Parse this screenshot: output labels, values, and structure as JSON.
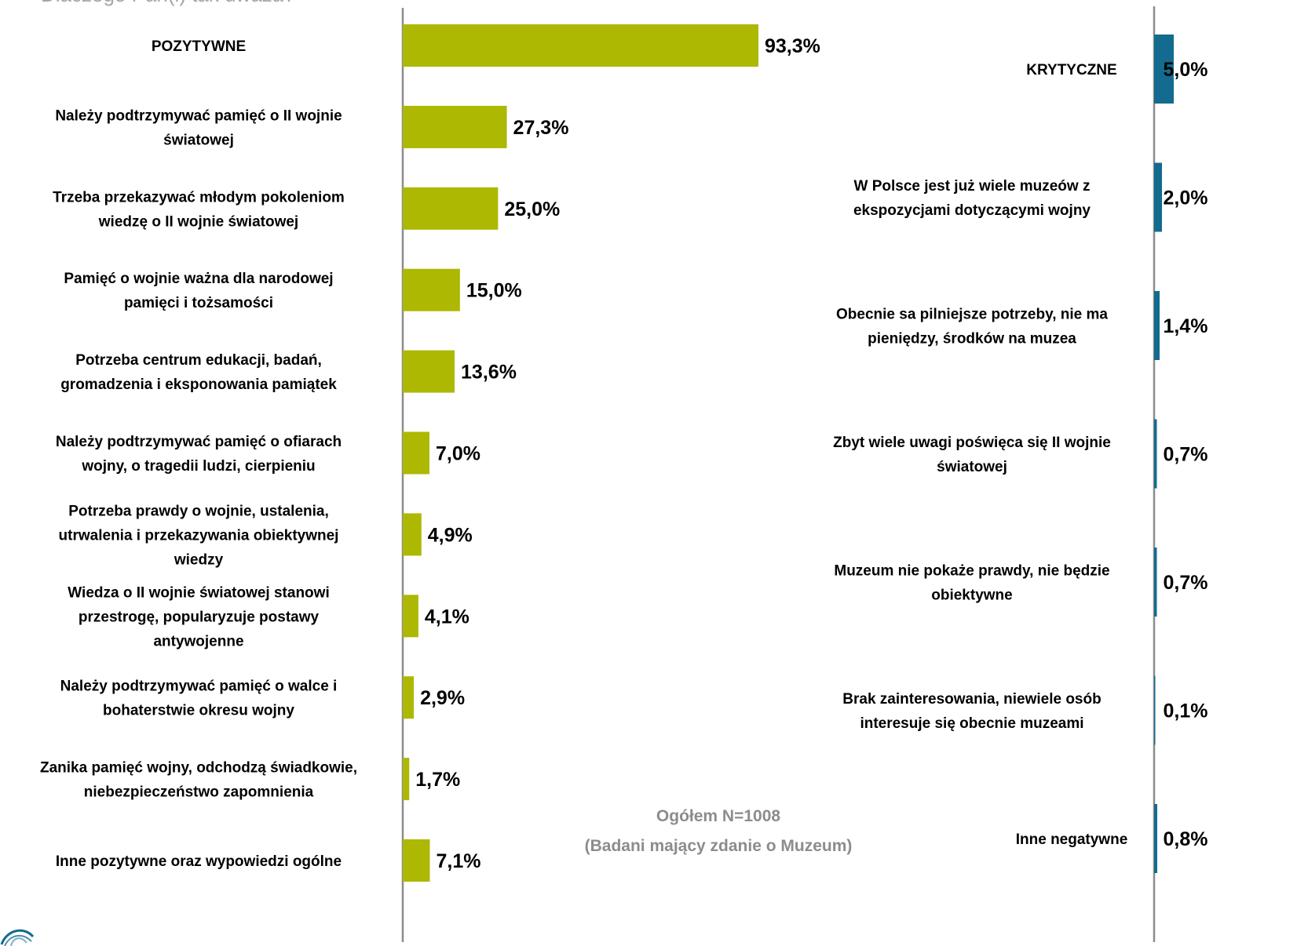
{
  "question_text": "Dlaczego Pan(i) tak uważa?",
  "note": {
    "line1": "Ogółem N=1008",
    "line2": "(Badani mający zdanie o Muzeum)"
  },
  "colors": {
    "positive": "#adb802",
    "negative": "#136b8f",
    "axis": "#8c8c8c",
    "text": "#000000",
    "note": "#8c8c8c"
  },
  "logo_icon": "globe-logo-icon",
  "chart_data": [
    {
      "type": "bar",
      "orientation": "horizontal",
      "unit": "%",
      "xlim": [
        0,
        100
      ],
      "categories": [
        "POZYTYWNE",
        "Należy podtrzymywać pamięć o II wojnie światowej",
        "Trzeba przekazywać młodym pokoleniom wiedzę o II wojnie światowej",
        "Pamięć o wojnie ważna dla narodowej pamięci i tożsamości",
        "Potrzeba centrum edukacji, badań, gromadzenia i eksponowania pamiątek",
        "Należy podtrzymywać pamięć o ofiarach wojny, o tragedii ludzi, cierpieniu",
        "Potrzeba prawdy o wojnie, ustalenia, utrwalenia i przekazywania obiektywnej wiedzy",
        "Wiedza o II wojnie światowej stanowi przestrogę, popularyzuje postawy antywojenne",
        "Należy podtrzymywać pamięć o walce i bohaterstwie okresu wojny",
        "Zanika pamięć wojny, odchodzą świadkowie, niebezpieczeństwo zapomnienia",
        "Inne pozytywne oraz wypowiedzi ogólne"
      ],
      "label_lines": [
        [
          "POZYTYWNE"
        ],
        [
          "Należy podtrzymywać pamięć o II wojnie",
          "światowej"
        ],
        [
          "Trzeba przekazywać młodym pokoleniom",
          "wiedzę o II wojnie światowej"
        ],
        [
          "Pamięć o wojnie ważna dla narodowej",
          "pamięci i tożsamości"
        ],
        [
          "Potrzeba centrum edukacji, badań,",
          "gromadzenia i eksponowania pamiątek"
        ],
        [
          "Należy podtrzymywać pamięć o ofiarach",
          "wojny, o tragedii ludzi, cierpieniu"
        ],
        [
          "Potrzeba prawdy o wojnie, ustalenia,",
          "utrwalenia i przekazywania obiektywnej",
          "wiedzy"
        ],
        [
          "Wiedza o II wojnie światowej stanowi",
          "przestrogę, popularyzuje postawy",
          "antywojenne"
        ],
        [
          "Należy podtrzymywać pamięć o walce i",
          "bohaterstwie okresu wojny"
        ],
        [
          "Zanika pamięć wojny, odchodzą świadkowie,",
          "niebezpieczeństwo zapomnienia"
        ],
        [
          "Inne pozytywne oraz wypowiedzi ogólne"
        ]
      ],
      "values": [
        93.3,
        27.3,
        25.0,
        15.0,
        13.6,
        7.0,
        4.9,
        4.1,
        2.9,
        1.7,
        7.1
      ],
      "value_labels": [
        "93,3%",
        "27,3%",
        "25,0%",
        "15,0%",
        "13,6%",
        "7,0%",
        "4,9%",
        "4,1%",
        "2,9%",
        "1,7%",
        "7,1%"
      ]
    },
    {
      "type": "bar",
      "orientation": "horizontal",
      "unit": "%",
      "categories": [
        "KRYTYCZNE",
        "W Polsce jest już wiele muzeów z ekspozycjami dotyczącymi wojny",
        "Obecnie sa pilniejsze potrzeby, nie ma pieniędzy, środków na muzea",
        "Zbyt wiele uwagi poświęca się II wojnie światowej",
        "Muzeum nie pokaże prawdy, nie będzie obiektywne",
        "Brak zainteresowania, niewiele osób interesuje się obecnie muzeami",
        "Inne negatywne"
      ],
      "label_lines": [
        [
          "KRYTYCZNE"
        ],
        [
          "W Polsce jest już wiele muzeów z",
          "ekspozycjami dotyczącymi wojny"
        ],
        [
          "Obecnie sa pilniejsze potrzeby, nie ma",
          "pieniędzy, środków na muzea"
        ],
        [
          "Zbyt wiele uwagi poświęca się II wojnie",
          "światowej"
        ],
        [
          "Muzeum nie pokaże prawdy, nie będzie",
          "obiektywne"
        ],
        [
          "Brak zainteresowania, niewiele osób",
          "interesuje się obecnie muzeami"
        ],
        [
          "Inne negatywne"
        ]
      ],
      "values": [
        5.0,
        2.0,
        1.4,
        0.7,
        0.7,
        0.1,
        0.8
      ],
      "value_labels": [
        "5,0%",
        "2,0%",
        "1,4%",
        "0,7%",
        "0,7%",
        "0,1%",
        "0,8%"
      ]
    }
  ]
}
